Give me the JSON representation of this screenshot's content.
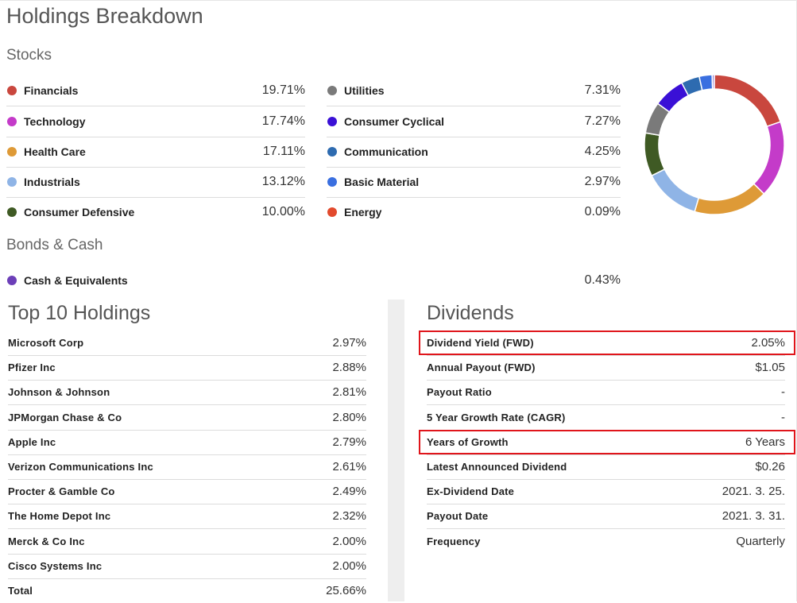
{
  "title": "Holdings Breakdown",
  "stocks_heading": "Stocks",
  "bonds_heading": "Bonds & Cash",
  "stocks_left": [
    {
      "label": "Financials",
      "value": "19.71%",
      "color": "#c9473e"
    },
    {
      "label": "Technology",
      "value": "17.74%",
      "color": "#c43bc9"
    },
    {
      "label": "Health Care",
      "value": "17.11%",
      "color": "#de9a37"
    },
    {
      "label": "Industrials",
      "value": "13.12%",
      "color": "#8fb4e6"
    },
    {
      "label": "Consumer Defensive",
      "value": "10.00%",
      "color": "#3f5a24"
    }
  ],
  "stocks_right": [
    {
      "label": "Utilities",
      "value": "7.31%",
      "color": "#7a7a7a"
    },
    {
      "label": "Consumer Cyclical",
      "value": "7.27%",
      "color": "#3a10d6"
    },
    {
      "label": "Communication",
      "value": "4.25%",
      "color": "#2e6bb0"
    },
    {
      "label": "Basic Material",
      "value": "2.97%",
      "color": "#3a6fe0"
    },
    {
      "label": "Energy",
      "value": "0.09%",
      "color": "#e24a2d"
    }
  ],
  "bonds": [
    {
      "label": "Cash & Equivalents",
      "value": "0.43%",
      "color": "#6c3fb8"
    }
  ],
  "chart_data": {
    "type": "pie",
    "donut": true,
    "categories": [
      "Financials",
      "Technology",
      "Health Care",
      "Industrials",
      "Consumer Defensive",
      "Utilities",
      "Consumer Cyclical",
      "Communication",
      "Basic Material",
      "Energy",
      "Cash & Equivalents"
    ],
    "values": [
      19.71,
      17.74,
      17.11,
      13.12,
      10.0,
      7.31,
      7.27,
      4.25,
      2.97,
      0.09,
      0.43
    ],
    "colors": [
      "#c9473e",
      "#c43bc9",
      "#de9a37",
      "#8fb4e6",
      "#3f5a24",
      "#7a7a7a",
      "#3a10d6",
      "#2e6bb0",
      "#3a6fe0",
      "#e24a2d",
      "#6c3fb8"
    ]
  },
  "top10": {
    "title": "Top 10 Holdings",
    "rows": [
      {
        "label": "Microsoft Corp",
        "value": "2.97%"
      },
      {
        "label": "Pfizer Inc",
        "value": "2.88%"
      },
      {
        "label": "Johnson & Johnson",
        "value": "2.81%"
      },
      {
        "label": "JPMorgan Chase & Co",
        "value": "2.80%"
      },
      {
        "label": "Apple Inc",
        "value": "2.79%"
      },
      {
        "label": "Verizon Communications Inc",
        "value": "2.61%"
      },
      {
        "label": "Procter & Gamble Co",
        "value": "2.49%"
      },
      {
        "label": "The Home Depot Inc",
        "value": "2.32%"
      },
      {
        "label": "Merck & Co Inc",
        "value": "2.00%"
      },
      {
        "label": "Cisco Systems Inc",
        "value": "2.00%"
      },
      {
        "label": "Total",
        "value": "25.66%"
      }
    ]
  },
  "dividends": {
    "title": "Dividends",
    "highlight_color": "#e0151b",
    "rows": [
      {
        "label": "Dividend Yield (FWD)",
        "value": "2.05%",
        "highlighted": true
      },
      {
        "label": "Annual Payout (FWD)",
        "value": "$1.05"
      },
      {
        "label": "Payout Ratio",
        "value": "-"
      },
      {
        "label": "5 Year Growth Rate (CAGR)",
        "value": "-"
      },
      {
        "label": "Years of Growth",
        "value": "6 Years",
        "highlighted": true
      },
      {
        "label": "Latest Announced Dividend",
        "value": "$0.26"
      },
      {
        "label": "Ex-Dividend Date",
        "value": "2021. 3. 25."
      },
      {
        "label": "Payout Date",
        "value": "2021. 3. 31."
      },
      {
        "label": "Frequency",
        "value": "Quarterly"
      }
    ]
  }
}
